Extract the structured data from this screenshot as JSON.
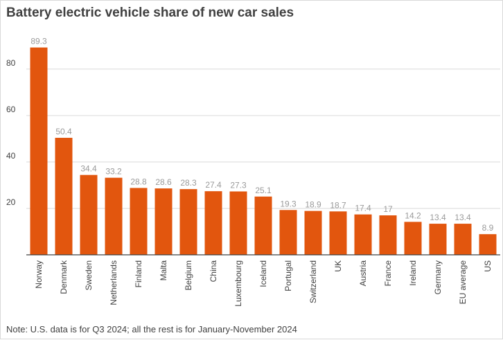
{
  "title": "Battery electric vehicle share of new car sales",
  "note": "Note: U.S. data is for Q3 2024; all the rest is for January-November 2024",
  "colors": {
    "bar": "#e2560e",
    "grid": "#d9d9d9",
    "axis": "#404040",
    "label": "#9a9a9a",
    "text": "#404040"
  },
  "chart_data": {
    "type": "bar",
    "title": "Battery electric vehicle share of new car sales",
    "xlabel": "",
    "ylabel": "",
    "ylim": [
      0,
      93
    ],
    "yticks": [
      20,
      40,
      60,
      80
    ],
    "categories": [
      "Norway",
      "Denmark",
      "Sweden",
      "Netherlands",
      "Finland",
      "Malta",
      "Belgium",
      "China",
      "Luxembourg",
      "Iceland",
      "Portugal",
      "Switzerland",
      "UK",
      "Austria",
      "France",
      "Ireland",
      "Germany",
      "EU average",
      "US"
    ],
    "values": [
      89.3,
      50.4,
      34.4,
      33.2,
      28.8,
      28.6,
      28.3,
      27.4,
      27.3,
      25.1,
      19.3,
      18.9,
      18.7,
      17.4,
      17,
      14.2,
      13.4,
      13.4,
      8.9
    ],
    "value_labels": [
      "89.3",
      "50.4",
      "34.4",
      "33.2",
      "28.8",
      "28.6",
      "28.3",
      "27.4",
      "27.3",
      "25.1",
      "19.3",
      "18.9",
      "18.7",
      "17.4",
      "17",
      "14.2",
      "13.4",
      "13.4",
      "8.9"
    ],
    "grid": true,
    "legend": "none"
  }
}
